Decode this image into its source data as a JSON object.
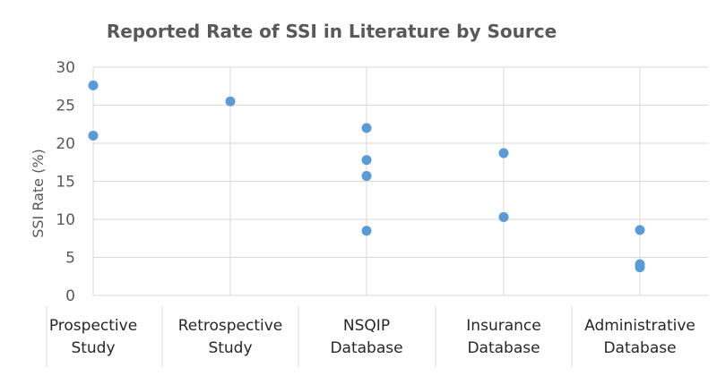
{
  "chart_data": {
    "type": "scatter",
    "title": "Reported Rate of SSI in Literature by Source",
    "xlabel": "",
    "ylabel": "SSI Rate (%)",
    "categories": [
      [
        "Prospective",
        "Study"
      ],
      [
        "Retrospective",
        "Study"
      ],
      [
        "NSQIP",
        "Database"
      ],
      [
        "Insurance",
        "Database"
      ],
      [
        "Administrative",
        "Database"
      ]
    ],
    "ylim": [
      0,
      30
    ],
    "yticks": [
      0,
      5,
      10,
      15,
      20,
      25,
      30
    ],
    "grid": true,
    "points": [
      {
        "category": 0,
        "y": 27.6
      },
      {
        "category": 0,
        "y": 21.0
      },
      {
        "category": 1,
        "y": 25.5
      },
      {
        "category": 2,
        "y": 22.0
      },
      {
        "category": 2,
        "y": 17.8
      },
      {
        "category": 2,
        "y": 15.7
      },
      {
        "category": 2,
        "y": 8.5
      },
      {
        "category": 3,
        "y": 18.7
      },
      {
        "category": 3,
        "y": 10.3
      },
      {
        "category": 4,
        "y": 8.6
      },
      {
        "category": 4,
        "y": 4.1
      },
      {
        "category": 4,
        "y": 3.7
      }
    ],
    "marker_color": "#5b9bd5"
  }
}
